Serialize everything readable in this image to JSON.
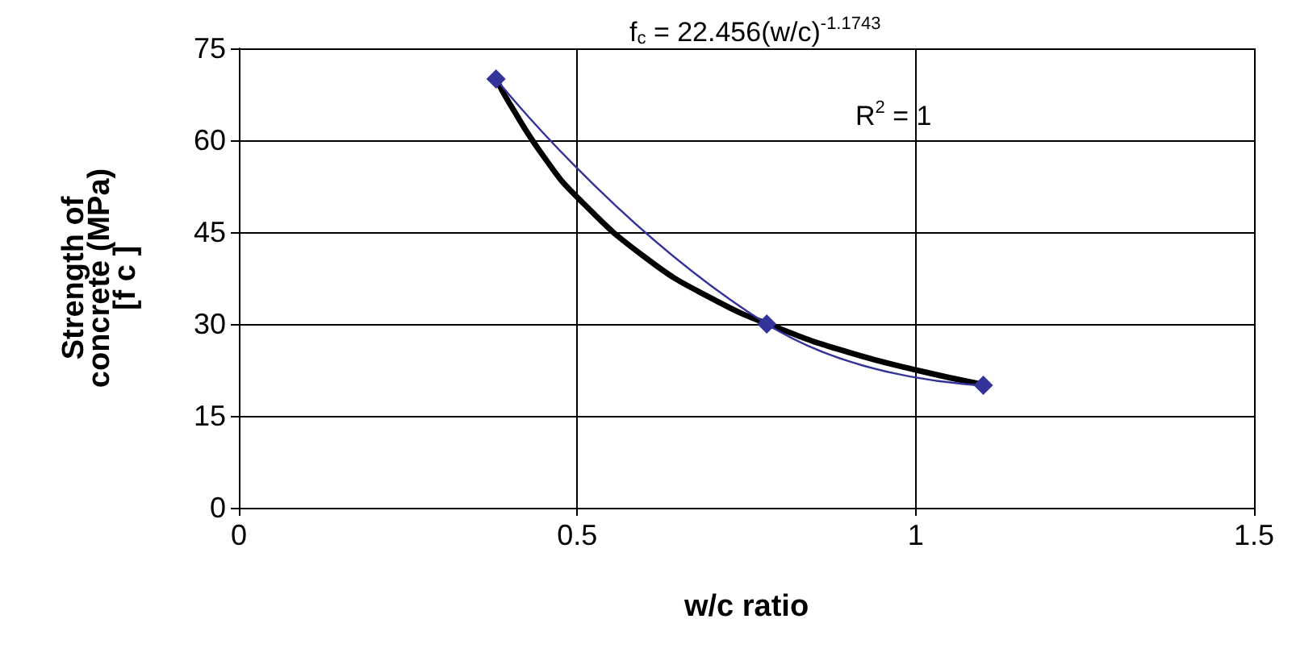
{
  "chart_data": {
    "type": "line",
    "xlabel": "w/c ratio",
    "ylabel": "Strength of\nconcrete (MPa)\n[f c ]",
    "xlim": [
      0,
      1.5
    ],
    "xticks": [
      0,
      0.5,
      1,
      1.5
    ],
    "ylim": [
      0,
      75
    ],
    "yticks": [
      0,
      15,
      30,
      45,
      60,
      75
    ],
    "grid": true,
    "annotations": [
      "f$_{c}$ = 22.456(w/c)$^{-1.1743}$",
      "R$^{2}$ = 1"
    ],
    "series": [
      {
        "color": "#333399",
        "marker": "diamond",
        "x": [
          0.38,
          0.78,
          1.1
        ],
        "values": [
          70,
          30,
          20
        ]
      },
      {
        "color": "#000000",
        "marker": "none",
        "x": [
          0.38,
          0.4,
          0.45,
          0.5,
          0.6,
          0.7,
          0.8,
          0.9,
          1.0,
          1.1
        ],
        "values": [
          70,
          66,
          57.4,
          50.7,
          40.9,
          34.1,
          29.2,
          25.4,
          22.5,
          20.1
        ]
      }
    ]
  }
}
